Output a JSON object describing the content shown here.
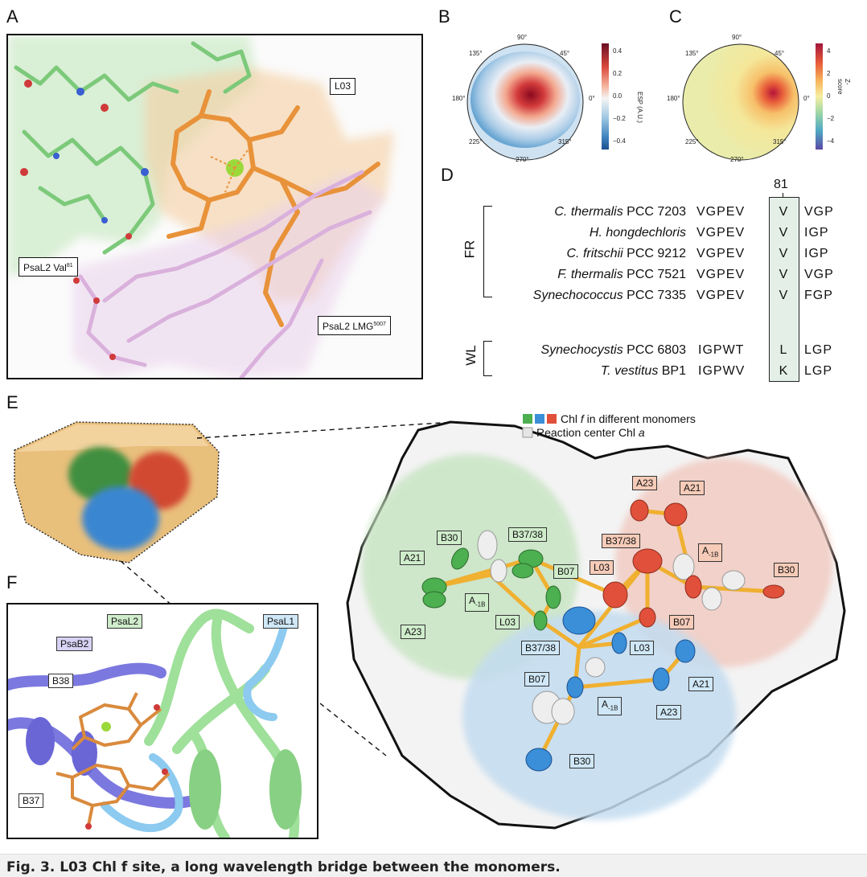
{
  "panels": {
    "a": {
      "letter": "A",
      "labels": {
        "l03": "L03",
        "val81": "PsaL2 Val",
        "val81_sup": "81",
        "lmg": "PsaL2 LMG",
        "lmg_sup": "5007"
      }
    },
    "b": {
      "letter": "B",
      "angles": {
        "a90": "90°",
        "a45": "45°",
        "a135": "135°",
        "a180": "180°",
        "a0": "0°",
        "a225": "225°",
        "a315": "315°",
        "a270": "270°"
      },
      "colorbar": {
        "label": "ESP (A.U.)",
        "ticks": [
          "0.4",
          "0.2",
          "0.0",
          "−0.2",
          "−0.4"
        ]
      }
    },
    "c": {
      "letter": "C",
      "angles": {
        "a90": "90°",
        "a45": "45°",
        "a135": "135°",
        "a180": "180°",
        "a0": "0°",
        "a225": "225°",
        "a315": "315°",
        "a270": "270°"
      },
      "colorbar": {
        "label": "Z-score",
        "ticks": [
          "4",
          "2",
          "0",
          "−2",
          "−4"
        ]
      }
    },
    "d": {
      "letter": "D",
      "position": "81",
      "groups": {
        "fr": "FR",
        "wl": "WL"
      },
      "rows": [
        {
          "italic": "C. thermalis",
          "rest": " PCC 7203",
          "left": "VGPEV",
          "res": "V",
          "right": "VGP"
        },
        {
          "italic": "H. hongdechloris",
          "rest": "",
          "left": "VGPEV",
          "res": "V",
          "right": "IGP"
        },
        {
          "italic": "C. fritschii",
          "rest": " PCC 9212",
          "left": "VGPEV",
          "res": "V",
          "right": "IGP"
        },
        {
          "italic": "F. thermalis",
          "rest": " PCC 7521",
          "left": "VGPEV",
          "res": "V",
          "right": "VGP"
        },
        {
          "italic": "Synechococcus",
          "rest": " PCC 7335",
          "left": "VGPEV",
          "res": "V",
          "right": "FGP"
        },
        {
          "italic": "Synechocystis",
          "rest": " PCC 6803",
          "left": "IGPWT",
          "res": "L",
          "right": "LGP"
        },
        {
          "italic": "T. vestitus",
          "rest": " BP1",
          "left": "IGPWV",
          "res": "K",
          "right": "LGP"
        }
      ]
    },
    "e": {
      "letter": "E",
      "legend": {
        "chl_f": "Chl ",
        "chl_f_i": "f",
        "chl_f_rest": " in different monomers",
        "rc": "Reaction center Chl ",
        "rc_i": "a"
      },
      "green": {
        "b30": "B30",
        "b3738": "B37/38",
        "a21": "A21",
        "b07": "B07",
        "l03": "L03",
        "a23": "A23",
        "a1b": "A",
        "a1b_sub": "-1B"
      },
      "red": {
        "a23": "A23",
        "a21": "A21",
        "b3738": "B37/38",
        "a1b": "A",
        "a1b_sub": "-1B",
        "l03": "L03",
        "b30": "B30",
        "b07": "B07"
      },
      "blue": {
        "b3738": "B37/38",
        "l03": "L03",
        "b07": "B07",
        "a21": "A21",
        "a1b": "A",
        "a1b_sub": "-1B",
        "a23": "A23",
        "b30": "B30"
      }
    },
    "f": {
      "letter": "F",
      "labels": {
        "psal2": "PsaL2",
        "psal1": "PsaL1",
        "psab2": "PsaB2",
        "b38": "B38",
        "b37": "B37"
      }
    }
  },
  "caption": "Fig. 3. L03 Chl f site, a long wavelength bridge between the monomers.",
  "colors": {
    "green": "#4caf50",
    "red": "#e0503a",
    "blue": "#3a8fd8",
    "bridge": "#f0b030",
    "orange": "#e89a50"
  }
}
